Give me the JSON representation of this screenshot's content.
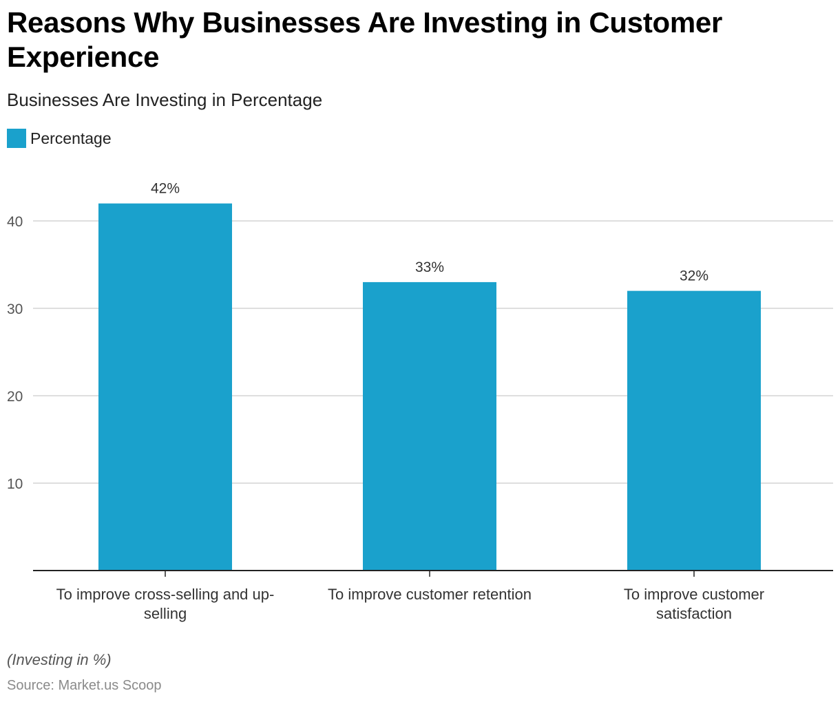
{
  "title": "Reasons Why Businesses Are Investing in Customer Experience",
  "subtitle": "Businesses Are Investing in Percentage",
  "note": "(Investing in %)",
  "source": "Source: Market.us Scoop",
  "colors": {
    "bar": "#1aa1cc",
    "grid": "#d4d4d4",
    "axis": "#222222",
    "tick_text": "#555555",
    "label_text": "#333333"
  },
  "chart_data": {
    "type": "bar",
    "categories": [
      "To improve cross-selling and up-selling",
      "To improve customer retention",
      "To improve customer satisfaction"
    ],
    "category_lines": [
      [
        "To improve cross-selling and up-",
        "selling"
      ],
      [
        "To improve customer retention"
      ],
      [
        "To improve customer",
        "satisfaction"
      ]
    ],
    "series": [
      {
        "name": "Percentage",
        "values": [
          42,
          33,
          32
        ]
      }
    ],
    "data_labels": [
      "42%",
      "33%",
      "32%"
    ],
    "y_ticks": [
      10,
      20,
      30,
      40
    ],
    "ylim": [
      0,
      46
    ],
    "grid": true,
    "legend": "top-left",
    "xlabel": "",
    "ylabel": ""
  }
}
